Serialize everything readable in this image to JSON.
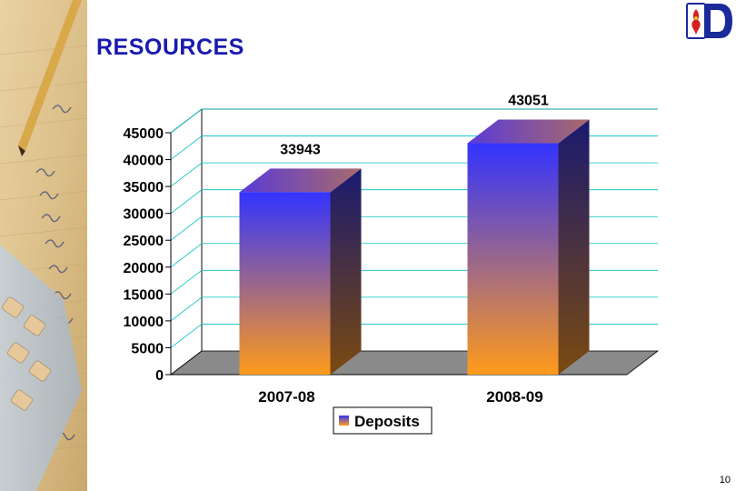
{
  "slide": {
    "title": "RESOURCES",
    "page_number": "10"
  },
  "colors": {
    "title": "#1a1ab0",
    "gridline": "#00c0c0",
    "floor": "#8a8a8a",
    "bar_top_color": "#3333ff",
    "bar_bottom_color": "#ff9a1a"
  },
  "chart_data": {
    "type": "bar",
    "categories": [
      "2007-08",
      "2008-09"
    ],
    "series": [
      {
        "name": "Deposits",
        "values": [
          33943,
          43051
        ]
      }
    ],
    "data_labels": [
      "33943",
      "43051"
    ],
    "ylim": [
      0,
      45000
    ],
    "y_ticks": [
      0,
      5000,
      10000,
      15000,
      20000,
      25000,
      30000,
      35000,
      40000,
      45000
    ],
    "grid": true,
    "legend": "bottom-center",
    "style": "3d"
  }
}
